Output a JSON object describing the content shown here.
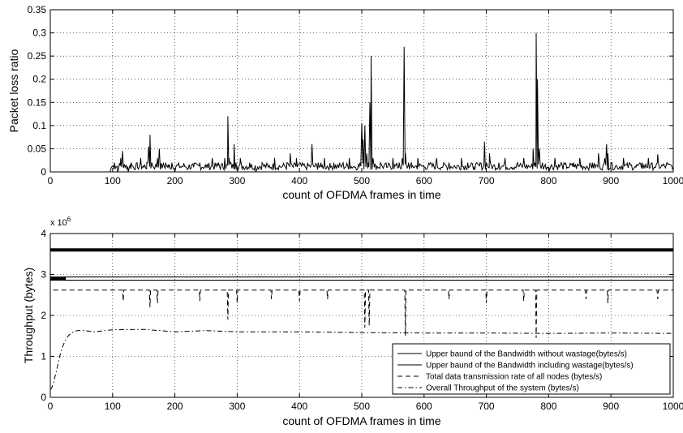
{
  "chart_data": [
    {
      "type": "line",
      "xlabel": "count of OFDMA frames in time",
      "ylabel": "Packet loss ratio",
      "xlim": [
        0,
        1000
      ],
      "ylim": [
        0,
        0.35
      ],
      "xticks": [
        "0",
        "100",
        "200",
        "300",
        "400",
        "500",
        "600",
        "700",
        "800",
        "900",
        "1000"
      ],
      "yticks": [
        "0",
        "0.05",
        "0.1",
        "0.15",
        "0.2",
        "0.25",
        "0.3",
        "0.35"
      ],
      "grid": true,
      "series": [
        {
          "color": "#000000",
          "base_level": 0.01,
          "x_start": 98,
          "x": [
            0,
            96,
            98,
            103,
            108,
            113,
            116,
            120,
            125,
            130,
            135,
            140,
            145,
            150,
            155,
            158,
            160,
            163,
            168,
            172,
            175,
            180,
            185,
            190,
            195,
            200,
            210,
            220,
            230,
            240,
            250,
            260,
            270,
            280,
            285,
            287,
            290,
            295,
            298,
            300,
            305,
            310,
            320,
            330,
            340,
            350,
            360,
            370,
            380,
            385,
            390,
            395,
            400,
            410,
            420,
            430,
            435,
            440,
            450,
            455,
            460,
            470,
            480,
            490,
            497,
            500,
            502,
            505,
            508,
            510,
            513,
            515,
            518,
            520,
            530,
            540,
            550,
            560,
            565,
            568,
            570,
            575,
            580,
            590,
            600,
            610,
            620,
            630,
            640,
            650,
            660,
            670,
            680,
            690,
            697,
            700,
            705,
            710,
            720,
            730,
            740,
            750,
            760,
            770,
            775,
            778,
            780,
            782,
            785,
            790,
            800,
            810,
            820,
            830,
            840,
            850,
            860,
            870,
            880,
            890,
            893,
            895,
            900,
            910,
            920,
            930,
            940,
            950,
            960,
            970,
            975,
            980,
            990,
            1000
          ],
          "y": [
            0,
            0,
            0.01,
            0.02,
            0.0,
            0.03,
            0.045,
            0.01,
            0.0,
            0.02,
            0.005,
            0.01,
            0.03,
            0.01,
            0.02,
            0.055,
            0.08,
            0.02,
            0.01,
            0.03,
            0.05,
            0.01,
            0.02,
            0.01,
            0.02,
            0.0,
            0.01,
            0.005,
            0.01,
            0.02,
            0.01,
            0.03,
            0.02,
            0.03,
            0.12,
            0.03,
            0.02,
            0.06,
            0.02,
            0.01,
            0.03,
            0.01,
            0.02,
            0.0,
            0.02,
            0.01,
            0.03,
            0.01,
            0.02,
            0.04,
            0.01,
            0.03,
            0.02,
            0.01,
            0.06,
            0.02,
            0.01,
            0.03,
            0.01,
            0.02,
            0.01,
            0.02,
            0.03,
            0.01,
            0.02,
            0.105,
            0.07,
            0.1,
            0.04,
            0.02,
            0.15,
            0.25,
            0.03,
            0.01,
            0.02,
            0.01,
            0.03,
            0.02,
            0.03,
            0.27,
            0.04,
            0.02,
            0.01,
            0.03,
            0.01,
            0.02,
            0.03,
            0.01,
            0.02,
            0.01,
            0.03,
            0.02,
            0.01,
            0.02,
            0.065,
            0.02,
            0.04,
            0.01,
            0.02,
            0.03,
            0.01,
            0.02,
            0.03,
            0.01,
            0.05,
            0.02,
            0.3,
            0.2,
            0.05,
            0.02,
            0.01,
            0.03,
            0.02,
            0.01,
            0.02,
            0.03,
            0.01,
            0.02,
            0.04,
            0.03,
            0.06,
            0.04,
            0.02,
            0.01,
            0.03,
            0.02,
            0.01,
            0.02,
            0.03,
            0.01,
            0.038,
            0.01,
            0.02,
            0.01
          ]
        }
      ]
    },
    {
      "type": "line",
      "xlabel": "count of OFDMA frames in time",
      "ylabel": "Throughput (bytes)",
      "y_multiplier_base": "x 10",
      "y_multiplier_exp": "6",
      "xlim": [
        0,
        1000
      ],
      "ylim": [
        0,
        4
      ],
      "xticks": [
        "0",
        "100",
        "200",
        "300",
        "400",
        "500",
        "600",
        "700",
        "800",
        "900",
        "1000"
      ],
      "yticks": [
        "0",
        "1",
        "2",
        "3",
        "4"
      ],
      "grid": true,
      "legend": "bottom-right",
      "series": [
        {
          "name": "Upper baund of the Bandwidth without wastage(bytes/s)",
          "style": "solid-thick",
          "x": [
            0,
            1000
          ],
          "y": [
            3.6,
            3.6
          ]
        },
        {
          "name": "Upper baund of the Bandwidth including wastage(bytes/s)",
          "style": "solid",
          "x": [
            0,
            1000
          ],
          "y": [
            2.9,
            2.9
          ]
        },
        {
          "name": "Total data transmission rate of all nodes (bytes/s)",
          "style": "dashed",
          "base": 2.62,
          "x_start": 5,
          "dips": [
            {
              "x": 117,
              "y": 2.35
            },
            {
              "x": 160,
              "y": 2.2
            },
            {
              "x": 172,
              "y": 2.3
            },
            {
              "x": 240,
              "y": 2.35
            },
            {
              "x": 285,
              "y": 1.9
            },
            {
              "x": 300,
              "y": 2.3
            },
            {
              "x": 355,
              "y": 2.4
            },
            {
              "x": 400,
              "y": 2.35
            },
            {
              "x": 445,
              "y": 2.4
            },
            {
              "x": 505,
              "y": 1.7
            },
            {
              "x": 512,
              "y": 1.75
            },
            {
              "x": 570,
              "y": 1.5
            },
            {
              "x": 640,
              "y": 2.4
            },
            {
              "x": 700,
              "y": 2.3
            },
            {
              "x": 760,
              "y": 2.35
            },
            {
              "x": 780,
              "y": 1.45
            },
            {
              "x": 860,
              "y": 2.4
            },
            {
              "x": 895,
              "y": 2.3
            },
            {
              "x": 975,
              "y": 2.4
            }
          ]
        },
        {
          "name": "Overall Throughput of the system (bytes/s)",
          "style": "dashdot",
          "x": [
            0,
            2,
            5,
            10,
            15,
            20,
            25,
            30,
            35,
            40,
            50,
            70,
            100,
            150,
            200,
            250,
            300,
            400,
            500,
            600,
            700,
            800,
            900,
            1000
          ],
          "y": [
            0.2,
            0.22,
            0.35,
            0.65,
            1.0,
            1.25,
            1.42,
            1.52,
            1.58,
            1.62,
            1.64,
            1.6,
            1.65,
            1.66,
            1.6,
            1.63,
            1.6,
            1.6,
            1.58,
            1.57,
            1.57,
            1.56,
            1.57,
            1.56
          ]
        }
      ]
    }
  ]
}
